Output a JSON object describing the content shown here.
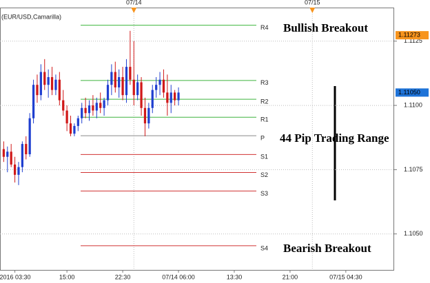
{
  "chart_data": {
    "type": "candlestick",
    "title": "(EUR/USD,Camarilla)",
    "x": [
      -3,
      -2,
      -1,
      0,
      1,
      2,
      3,
      4,
      5,
      6,
      7,
      8,
      9,
      10,
      11,
      12,
      13,
      14,
      15,
      16,
      17,
      18,
      19,
      20,
      21,
      22,
      23,
      24,
      25,
      26,
      27,
      28,
      29,
      30,
      31,
      32,
      33,
      34,
      35,
      36,
      37,
      38,
      39,
      40,
      41,
      42,
      43,
      44
    ],
    "open": [
      1.1083,
      1.108,
      1.1082,
      1.1077,
      1.1073,
      1.1076,
      1.1085,
      1.1081,
      1.1095,
      1.1108,
      1.1104,
      1.1113,
      1.1108,
      1.1111,
      1.1106,
      1.111,
      1.1102,
      1.1098,
      1.1093,
      1.1089,
      1.1092,
      1.1095,
      1.1099,
      1.1097,
      1.11,
      1.1098,
      1.1101,
      1.1099,
      1.1102,
      1.1108,
      1.1113,
      1.1107,
      1.1111,
      1.1104,
      1.1115,
      1.111,
      1.1104,
      1.1109,
      1.1099,
      1.1093,
      1.1099,
      1.1106,
      1.1108,
      1.111,
      1.1105,
      1.1101,
      1.1105,
      1.1102
    ],
    "high": [
      1.1086,
      1.1084,
      1.1085,
      1.108,
      1.1078,
      1.1086,
      1.1088,
      1.1097,
      1.111,
      1.1112,
      1.1116,
      1.1118,
      1.1114,
      1.1115,
      1.1112,
      1.1113,
      1.1106,
      1.11,
      1.1096,
      1.1093,
      1.1096,
      1.1101,
      1.1103,
      1.1102,
      1.1104,
      1.1103,
      1.1105,
      1.1103,
      1.111,
      1.1116,
      1.1117,
      1.1114,
      1.1115,
      1.1118,
      1.1129,
      1.1125,
      1.1112,
      1.1111,
      1.1103,
      1.1101,
      1.1108,
      1.1111,
      1.1113,
      1.1114,
      1.1112,
      1.1108,
      1.1106,
      1.1107
    ],
    "low": [
      1.1078,
      1.1074,
      1.1076,
      1.107,
      1.1069,
      1.1074,
      1.1079,
      1.108,
      1.1093,
      1.1101,
      1.1102,
      1.1106,
      1.1103,
      1.1104,
      1.1104,
      1.11,
      1.1096,
      1.109,
      1.1088,
      1.1088,
      1.109,
      1.1093,
      1.1095,
      1.1094,
      1.1096,
      1.1095,
      1.1097,
      1.1096,
      1.11,
      1.1104,
      1.1105,
      1.1103,
      1.1102,
      1.1101,
      1.1108,
      1.11,
      1.1102,
      1.1096,
      1.1088,
      1.1091,
      1.1097,
      1.1103,
      1.1104,
      1.1103,
      1.1096,
      1.1097,
      1.11,
      1.11
    ],
    "close": [
      1.108,
      1.1082,
      1.1077,
      1.1073,
      1.1076,
      1.1085,
      1.1081,
      1.1095,
      1.1108,
      1.1104,
      1.1113,
      1.1108,
      1.1111,
      1.1106,
      1.111,
      1.1102,
      1.1098,
      1.1093,
      1.1089,
      1.1092,
      1.1095,
      1.1099,
      1.1097,
      1.11,
      1.1098,
      1.1101,
      1.1099,
      1.1102,
      1.1108,
      1.1113,
      1.1107,
      1.1111,
      1.1104,
      1.1115,
      1.111,
      1.1104,
      1.1109,
      1.1099,
      1.1093,
      1.1099,
      1.1106,
      1.1108,
      1.111,
      1.1105,
      1.1101,
      1.1105,
      1.1102,
      1.1105
    ],
    "up_color": "#1f3fd0",
    "down_color": "#d01818",
    "xlim": [
      -4,
      102
    ],
    "xticks": [
      {
        "value": 0,
        "label": "2016 03:30"
      },
      {
        "value": 14,
        "label": "15:00"
      },
      {
        "value": 29,
        "label": "22:30"
      },
      {
        "value": 44,
        "label": "07/14 06:00"
      },
      {
        "value": 59,
        "label": "13:30"
      },
      {
        "value": 74,
        "label": "21:00"
      },
      {
        "value": 89,
        "label": "07/15 04:30"
      }
    ],
    "top_ticks": [
      {
        "value": 32,
        "label": "07/14"
      },
      {
        "value": 80,
        "label": "07/15"
      }
    ],
    "ylim": [
      1.1036,
      1.1141
    ],
    "yticks": [
      {
        "value": 1.105,
        "label": "1.1050"
      },
      1.1075,
      {
        "value": 1.11,
        "label": "1.1100"
      },
      1.1125
    ],
    "grid": true,
    "price_labels": [
      {
        "value": 1.11273,
        "color": "#f7941d"
      },
      {
        "value": {
          "value": 1.1105,
          "label": "1.11050"
        },
        "color": "#1e73d8"
      }
    ],
    "levels": [
      {
        "name": "R4",
        "value": 1.11312,
        "color": "#3cb43c"
      },
      {
        "name": "R3",
        "value": 1.11097,
        "color": "#3cb43c"
      },
      {
        "name": "R2",
        "value": 1.11024,
        "color": "#3cb43c"
      },
      {
        "name": "R1",
        "value": 1.10954,
        "color": "#3cb43c"
      },
      {
        "name": "P",
        "value": 1.10882,
        "color": "#888888"
      },
      {
        "name": "S1",
        "value": 1.10809,
        "color": "#d03030"
      },
      {
        "name": "S2",
        "value": 1.10739,
        "color": "#d03030"
      },
      {
        "name": "S3",
        "value": 1.10667,
        "color": "#d03030"
      },
      {
        "name": "S4",
        "value": 1.10454,
        "color": "#d03030"
      }
    ],
    "annotations": [
      "Bullish Breakout",
      "44 Pip Trading Range",
      "Bearish Breakout"
    ]
  }
}
